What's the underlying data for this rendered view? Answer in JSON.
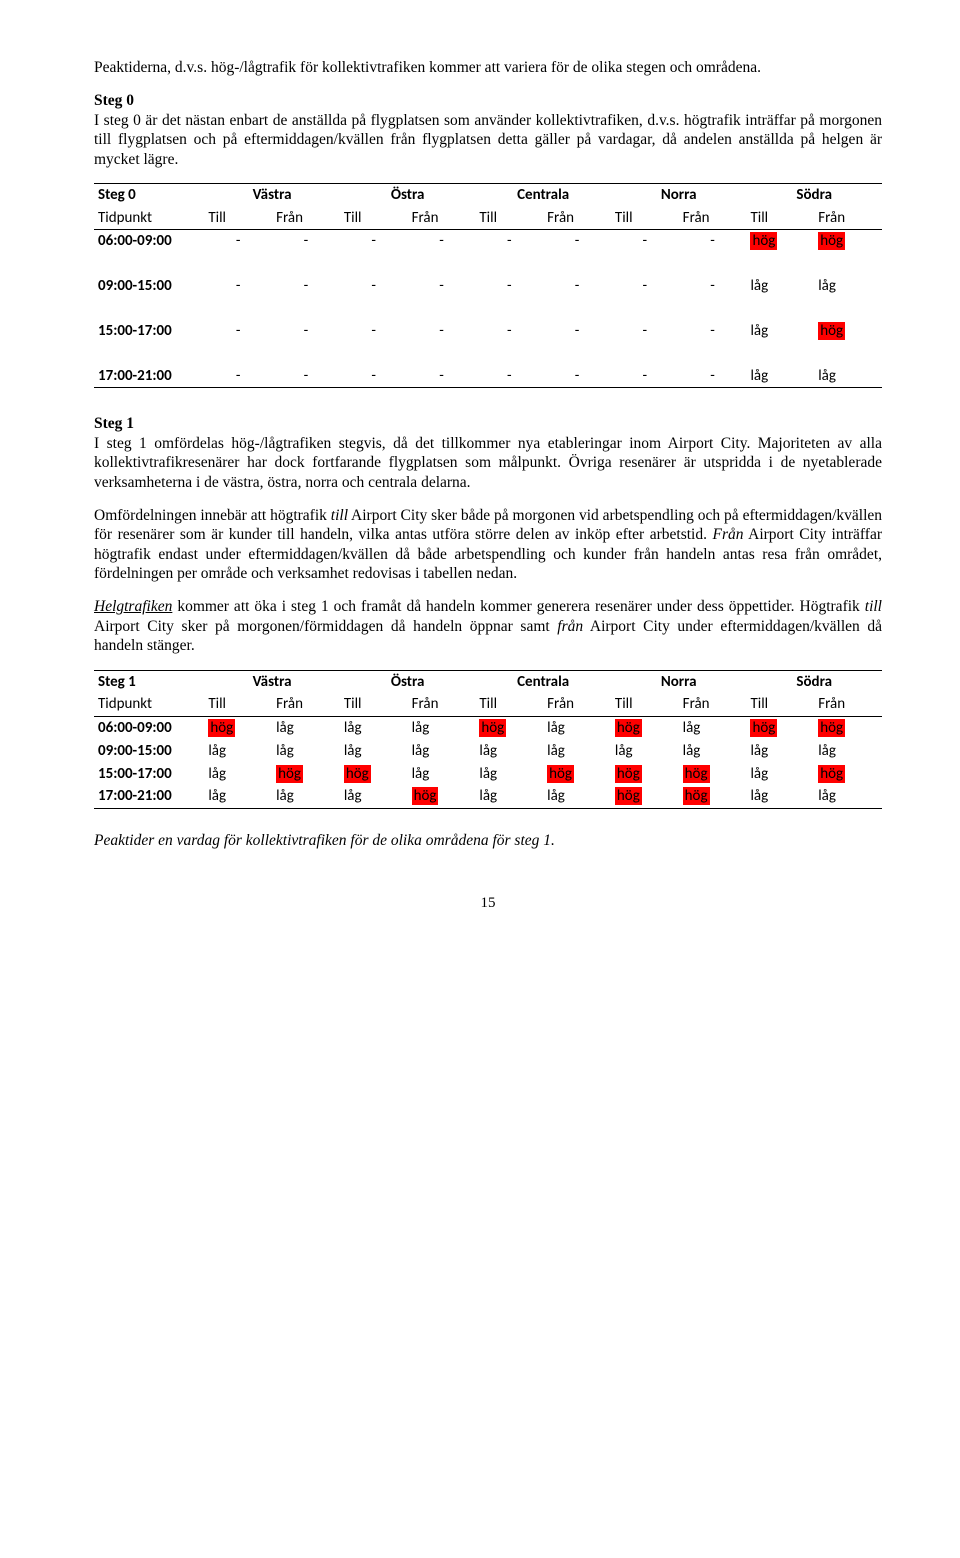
{
  "intro": "Peaktiderna, d.v.s. hög-/lågtrafik för kollektivtrafiken kommer att variera för de olika stegen och områdena.",
  "steg0": {
    "heading": "Steg 0",
    "body": "I steg 0 är det nästan enbart de anställda på flygplatsen som använder kollektivtrafiken, d.v.s. högtrafik inträffar på morgonen till flygplatsen och på eftermiddagen/kvällen från flygplatsen detta gäller på vardagar, då andelen anställda på helgen är mycket lägre."
  },
  "table_labels": {
    "regions": [
      "Västra",
      "Östra",
      "Centrala",
      "Norra",
      "Södra"
    ],
    "tidpunkt": "Tidpunkt",
    "till": "Till",
    "fran": "Från",
    "dash": "-",
    "hog": "hög",
    "lag": "låg"
  },
  "table0": {
    "title": "Steg 0",
    "times": [
      "06:00-09:00",
      "09:00-15:00",
      "15:00-17:00",
      "17:00-21:00"
    ],
    "rows": [
      [
        "-",
        "-",
        "-",
        "-",
        "-",
        "-",
        "-",
        "-",
        "hög",
        "hög"
      ],
      [
        "-",
        "-",
        "-",
        "-",
        "-",
        "-",
        "-",
        "-",
        "låg",
        "låg"
      ],
      [
        "-",
        "-",
        "-",
        "-",
        "-",
        "-",
        "-",
        "-",
        "låg",
        "hög"
      ],
      [
        "-",
        "-",
        "-",
        "-",
        "-",
        "-",
        "-",
        "-",
        "låg",
        "låg"
      ]
    ],
    "spaced": true
  },
  "steg1": {
    "heading": "Steg 1",
    "p1": "I steg 1 omfördelas hög-/lågtrafiken stegvis, då det tillkommer nya etableringar inom Airport City. Majoriteten av alla kollektivtrafikresenärer har dock fortfarande flygplatsen som målpunkt. Övriga resenärer är utspridda i de nyetablerade verksamheterna i de västra, östra, norra och centrala delarna.",
    "p2_a": "Omfördelningen innebär att högtrafik ",
    "p2_till": "till",
    "p2_b": " Airport City sker både på morgonen vid arbetspendling och på eftermiddagen/kvällen för resenärer som är kunder till handeln, vilka antas utföra större delen av inköp efter arbetstid. ",
    "p2_fran": "Från",
    "p2_c": " Airport City inträffar högtrafik endast under eftermiddagen/kvällen då både arbetspendling och kunder från handeln antas resa från området, fördelningen per område och verksamhet redovisas i tabellen nedan.",
    "p3_lead": "Helgtrafiken",
    "p3_a": " kommer att öka i steg 1 och framåt då handeln kommer generera resenärer under dess öppettider. Högtrafik ",
    "p3_till": "till",
    "p3_b": " Airport City sker på morgonen/förmiddagen då handeln öppnar samt ",
    "p3_fran": "från",
    "p3_c": " Airport City under eftermiddagen/kvällen då handeln stänger."
  },
  "table1": {
    "title": "Steg 1",
    "times": [
      "06:00-09:00",
      "09:00-15:00",
      "15:00-17:00",
      "17:00-21:00"
    ],
    "rows": [
      [
        "hög",
        "låg",
        "låg",
        "låg",
        "hög",
        "låg",
        "hög",
        "låg",
        "hög",
        "hög"
      ],
      [
        "låg",
        "låg",
        "låg",
        "låg",
        "låg",
        "låg",
        "låg",
        "låg",
        "låg",
        "låg"
      ],
      [
        "låg",
        "hög",
        "hög",
        "låg",
        "låg",
        "hög",
        "hög",
        "hög",
        "låg",
        "hög"
      ],
      [
        "låg",
        "låg",
        "låg",
        "hög",
        "låg",
        "låg",
        "hög",
        "hög",
        "låg",
        "låg"
      ]
    ],
    "spaced": false
  },
  "caption1": "Peaktider en vardag för kollektivtrafiken för de olika områdena för steg 1.",
  "pagenum": "15"
}
